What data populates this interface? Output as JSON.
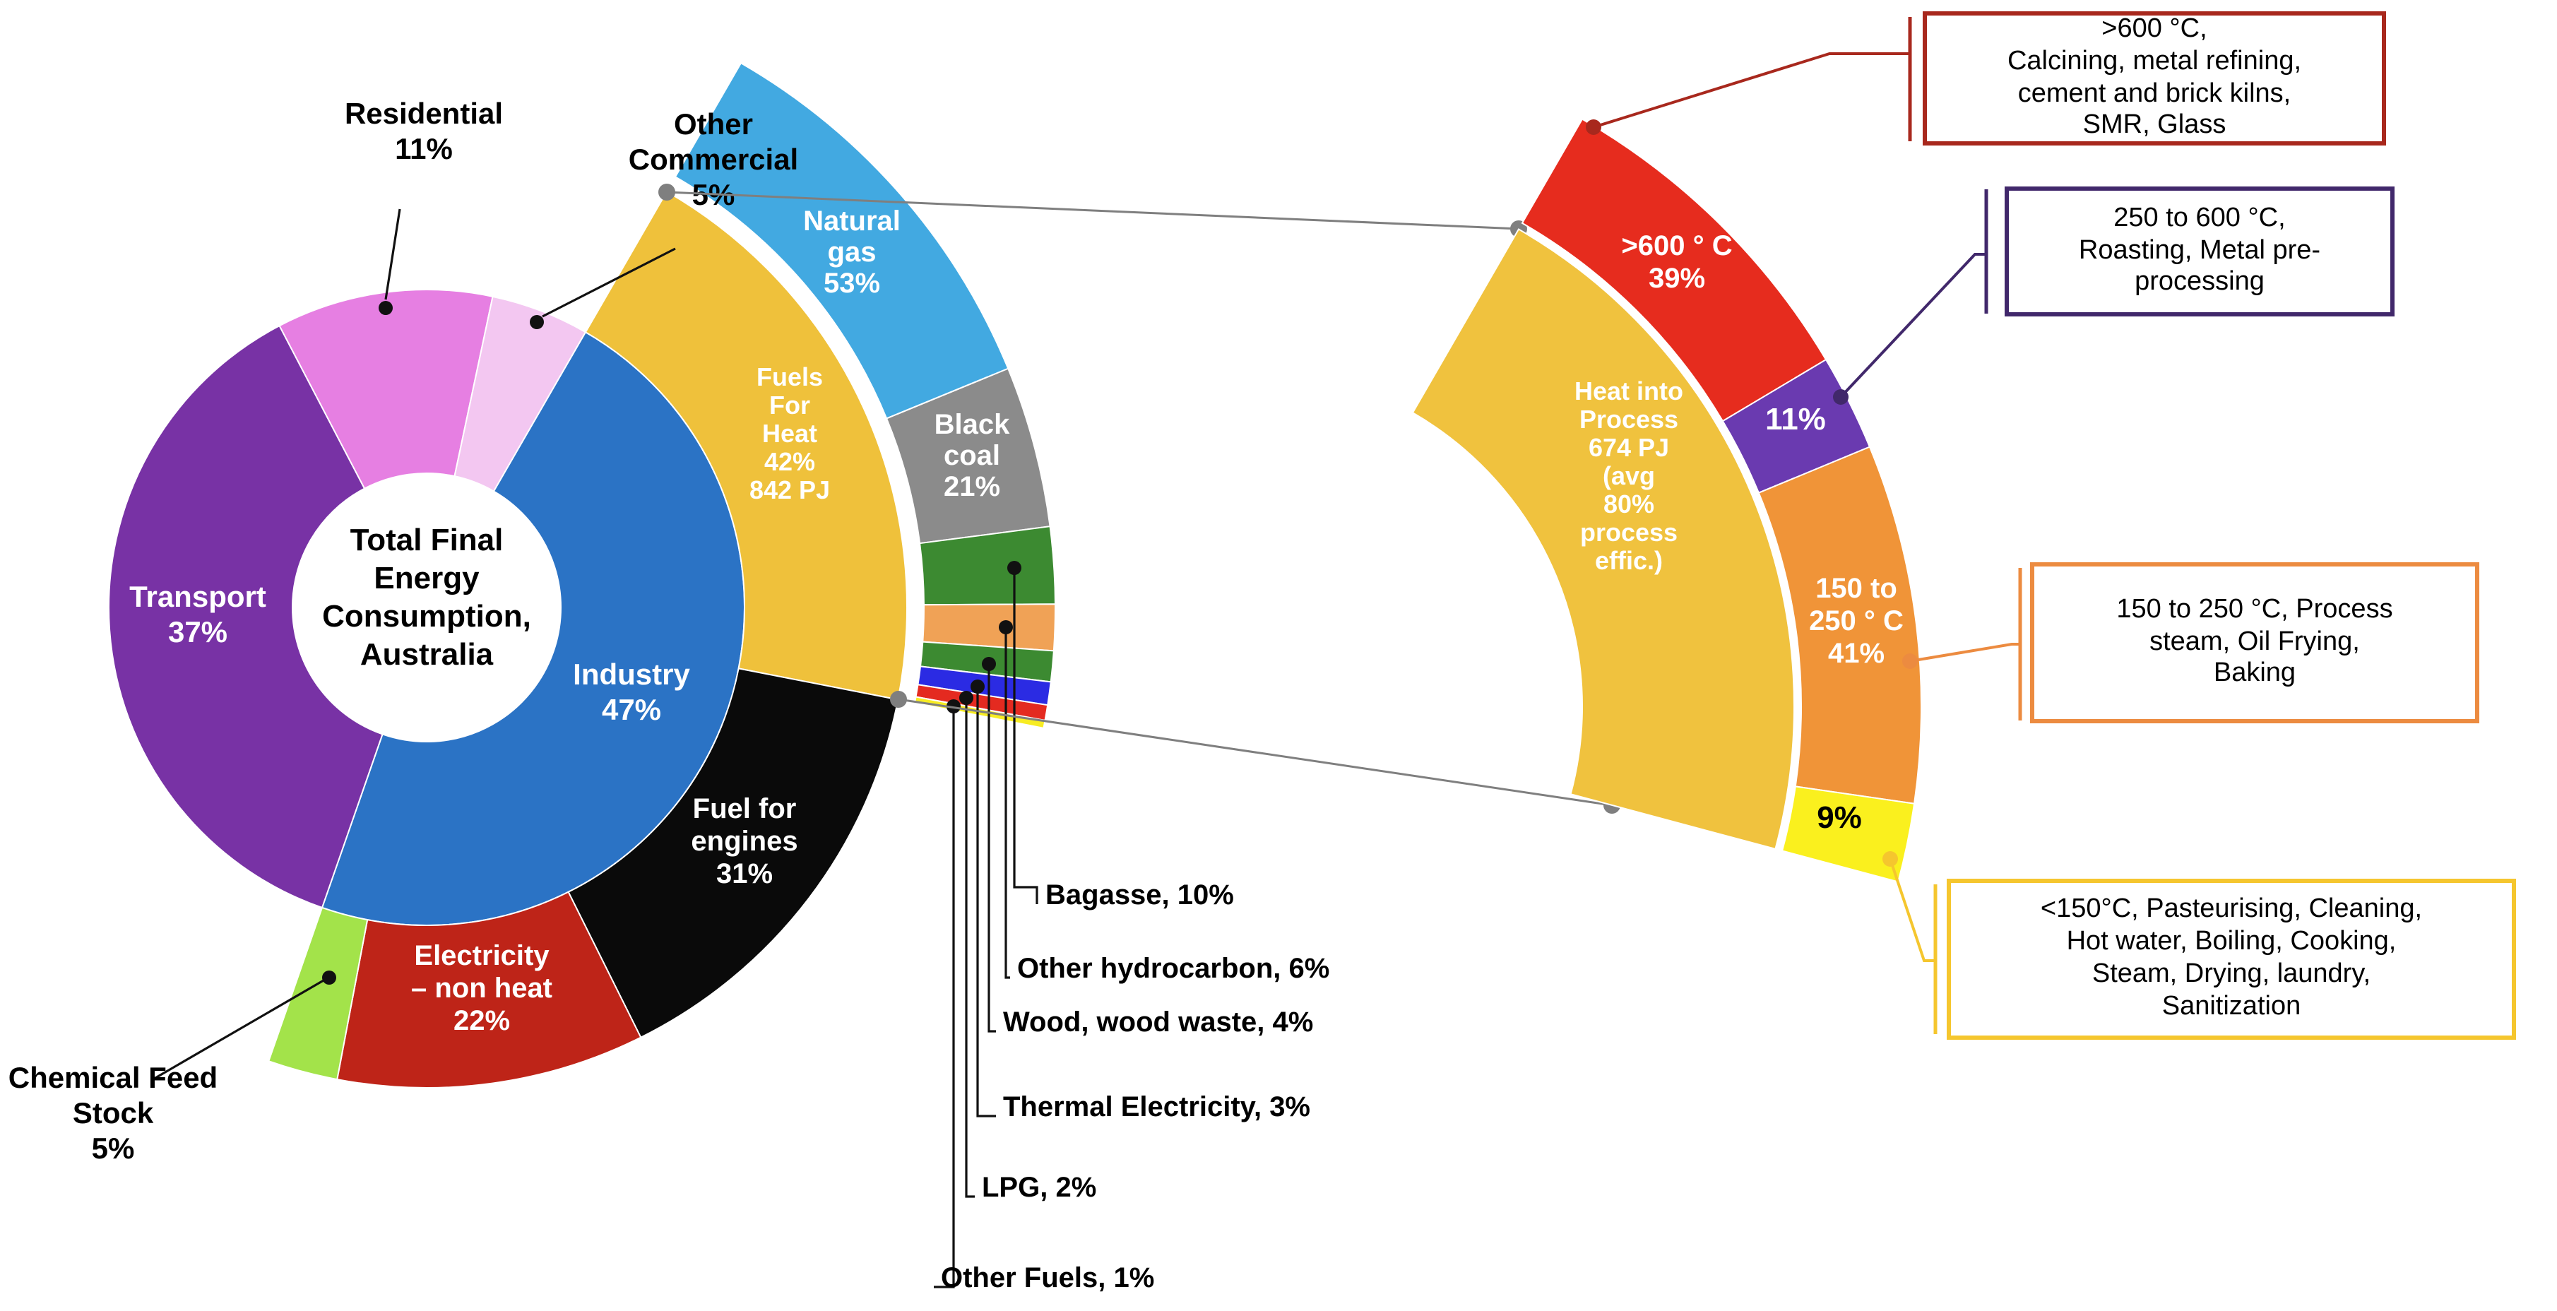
{
  "figure": {
    "background": "#FFFFFF",
    "center_label": "Total Final\nEnergy\nConsumption,\nAustralia"
  },
  "chart_data": [
    {
      "type": "pie",
      "variant": "sunburst-donut",
      "title": "Total Final Energy Consumption, Australia",
      "legend_position": "none",
      "rings": [
        {
          "name": "sector",
          "unit": "percent of total final energy consumption",
          "segments": [
            {
              "id": "residential",
              "label": "Residential\n11%",
              "value": 11,
              "color": "#E67FE2",
              "label_outside": true
            },
            {
              "id": "other-commercial",
              "label": "Other\nCommercial\n5%",
              "value": 5,
              "color": "#F3C7F1",
              "label_outside": true
            },
            {
              "id": "industry",
              "label": "Industry\n47%",
              "value": 47,
              "color": "#2B73C5",
              "text_color": "#FFFFFF"
            },
            {
              "id": "transport",
              "label": "Transport\n37%",
              "value": 37,
              "color": "#7832A5",
              "text_color": "#FFFFFF"
            }
          ]
        },
        {
          "name": "industry-breakdown",
          "parent": "industry",
          "unit": "percent of industry",
          "segments": [
            {
              "id": "fuels-for-heat",
              "label": "Fuels\nFor\nHeat\n42%\n842 PJ",
              "value": 42,
              "color": "#EFC13B",
              "text_color": "#FFFFFF"
            },
            {
              "id": "fuel-for-engines",
              "label": "Fuel for\nengines\n31%",
              "value": 31,
              "color": "#0A0A0A",
              "text_color": "#FFFFFF"
            },
            {
              "id": "electricity-non-heat",
              "label": "Electricity\n– non heat\n22%",
              "value": 22,
              "color": "#BE2418",
              "text_color": "#FFFFFF"
            },
            {
              "id": "chemical-feed-stock",
              "label": "Chemical Feed\nStock\n5%",
              "value": 5,
              "color": "#A3E34A",
              "label_outside": true
            }
          ]
        },
        {
          "name": "fuels-for-heat-breakdown",
          "parent": "fuels-for-heat",
          "unit": "percent of fuels for heat",
          "segments": [
            {
              "id": "natural-gas",
              "label": "Natural\ngas\n53%",
              "value": 53,
              "color": "#42A9E1",
              "text_color": "#FFFFFF"
            },
            {
              "id": "black-coal",
              "label": "Black\ncoal\n21%",
              "value": 21,
              "color": "#8B8B8B",
              "text_color": "#FFFFFF"
            },
            {
              "id": "bagasse",
              "label": "Bagasse, 10%",
              "value": 10,
              "color": "#3C8A31",
              "label_outside": true
            },
            {
              "id": "other-hydrocarbon",
              "label": "Other hydrocarbon, 6%",
              "value": 6,
              "color": "#F0A256",
              "label_outside": true
            },
            {
              "id": "wood-wood-waste",
              "label": "Wood, wood waste, 4%",
              "value": 4,
              "color": "#3C8A31",
              "label_outside": true
            },
            {
              "id": "thermal-electricity",
              "label": "Thermal Electricity, 3%",
              "value": 3,
              "color": "#2B2BE3",
              "label_outside": true
            },
            {
              "id": "lpg",
              "label": "LPG, 2%",
              "value": 2,
              "color": "#E42A20",
              "label_outside": true
            },
            {
              "id": "other-fuels",
              "label": "Other Fuels, 1%",
              "value": 1,
              "color": "#F7EC23",
              "label_outside": true
            }
          ]
        }
      ]
    },
    {
      "type": "pie",
      "variant": "exploded-arc-detail",
      "title": "Heat into Process 674 PJ (avg 80% process effic.)",
      "band_label": "Heat into\nProcess\n674 PJ\n(avg\n80%\nprocess\neffic.)",
      "band_color": "#F0C23E",
      "band_text_color": "#FFFFFF",
      "unit": "percent of heat into process",
      "segments": [
        {
          "id": "over-600c",
          "label": ">600 ° C\n39%",
          "value": 39,
          "color": "#E62C1E",
          "text_color": "#FFFFFF"
        },
        {
          "id": "250-600c",
          "label": "11%",
          "value": 11,
          "color": "#6A3AB0",
          "text_color": "#FFFFFF"
        },
        {
          "id": "150-250c",
          "label": "150 to\n250 ° C\n41%",
          "value": 41,
          "color": "#F09438",
          "text_color": "#FFFFFF"
        },
        {
          "id": "under-150c",
          "label": "9%",
          "value": 9,
          "color": "#FAF01E",
          "text_color": "#000000"
        }
      ]
    }
  ],
  "callouts": [
    {
      "id": "over-600c",
      "text": ">600 °C,\nCalcining, metal refining,\ncement and brick kilns,\nSMR, Glass",
      "border_color": "#A8281D"
    },
    {
      "id": "250-600c",
      "text": "250 to 600 °C,\nRoasting, Metal pre-\nprocessing",
      "border_color": "#41286B"
    },
    {
      "id": "150-250c",
      "text": "150 to 250 °C, Process\nsteam, Oil Frying,\nBaking",
      "border_color": "#EC8B40"
    },
    {
      "id": "under-150c",
      "text": "<150°C, Pasteurising, Cleaning,\nHot water, Boiling, Cooking,\nSteam, Drying, laundry,\nSanitization",
      "border_color": "#F5C62E"
    }
  ],
  "connectors": {
    "link_color": "#7F7F7F",
    "leader_color": "#111111"
  }
}
